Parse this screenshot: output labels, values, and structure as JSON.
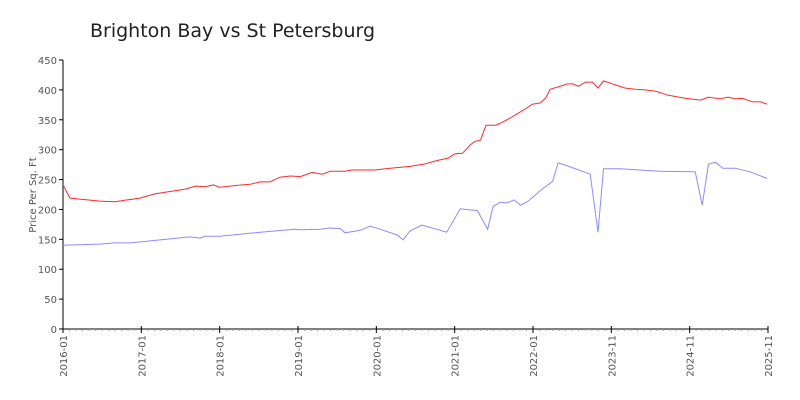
{
  "chart_data": {
    "type": "line",
    "title": "Brighton Bay vs St Petersburg",
    "xlabel": "",
    "ylabel": "Price Per Sq. Ft",
    "ylim": [
      0,
      450
    ],
    "yticks": [
      0,
      50,
      100,
      150,
      200,
      250,
      300,
      350,
      400,
      450
    ],
    "xlim": [
      0,
      9
    ],
    "xticks": [
      "2016-01",
      "2017-01",
      "2018-01",
      "2019-01",
      "2020-01",
      "2021-01",
      "2022-01",
      "2023-11",
      "2024-11",
      "2025-11"
    ],
    "x_units": "tick index",
    "grid": false,
    "legend": "none",
    "series": [
      {
        "name": "Brighton Bay",
        "color": "#ff2a2a",
        "points": [
          [
            0,
            241
          ],
          [
            0.09,
            219
          ],
          [
            0.47,
            214
          ],
          [
            0.66,
            213
          ],
          [
            0.98,
            219
          ],
          [
            1.17,
            226
          ],
          [
            1.56,
            234
          ],
          [
            1.69,
            239
          ],
          [
            1.81,
            238
          ],
          [
            1.92,
            241
          ],
          [
            2.0,
            237
          ],
          [
            2.2,
            240
          ],
          [
            2.39,
            242
          ],
          [
            2.52,
            246
          ],
          [
            2.64,
            246
          ],
          [
            2.77,
            254
          ],
          [
            2.9,
            256
          ],
          [
            3.03,
            255
          ],
          [
            3.18,
            262
          ],
          [
            3.31,
            259
          ],
          [
            3.41,
            264
          ],
          [
            3.6,
            264
          ],
          [
            3.69,
            266
          ],
          [
            3.98,
            266
          ],
          [
            4.18,
            269
          ],
          [
            4.43,
            272
          ],
          [
            4.62,
            276
          ],
          [
            4.75,
            281
          ],
          [
            4.92,
            286
          ],
          [
            5.0,
            293
          ],
          [
            5.1,
            294
          ],
          [
            5.2,
            308
          ],
          [
            5.26,
            314
          ],
          [
            5.33,
            316
          ],
          [
            5.4,
            341
          ],
          [
            5.52,
            341
          ],
          [
            5.58,
            344
          ],
          [
            5.71,
            353
          ],
          [
            5.81,
            361
          ],
          [
            5.9,
            368
          ],
          [
            5.99,
            376
          ],
          [
            6.09,
            378
          ],
          [
            6.16,
            386
          ],
          [
            6.22,
            401
          ],
          [
            6.32,
            405
          ],
          [
            6.44,
            410
          ],
          [
            6.51,
            410
          ],
          [
            6.58,
            406
          ],
          [
            6.67,
            413
          ],
          [
            6.76,
            413
          ],
          [
            6.83,
            403
          ],
          [
            6.9,
            415
          ],
          [
            6.99,
            411
          ],
          [
            7.18,
            403
          ],
          [
            7.31,
            401
          ],
          [
            7.43,
            400
          ],
          [
            7.56,
            398
          ],
          [
            7.73,
            391
          ],
          [
            7.94,
            386
          ],
          [
            8.14,
            383
          ],
          [
            8.24,
            388
          ],
          [
            8.39,
            385
          ],
          [
            8.49,
            388
          ],
          [
            8.58,
            385
          ],
          [
            8.67,
            386
          ],
          [
            8.8,
            380
          ],
          [
            8.9,
            380
          ],
          [
            8.99,
            376
          ]
        ]
      },
      {
        "name": "St Petersburg",
        "color": "#8c8cff",
        "points": [
          [
            0,
            140
          ],
          [
            0.47,
            142
          ],
          [
            0.66,
            144
          ],
          [
            0.86,
            144
          ],
          [
            1.24,
            149
          ],
          [
            1.62,
            154
          ],
          [
            1.75,
            152
          ],
          [
            1.81,
            155
          ],
          [
            2.0,
            155
          ],
          [
            2.52,
            162
          ],
          [
            2.96,
            167
          ],
          [
            3.03,
            166
          ],
          [
            3.28,
            167
          ],
          [
            3.41,
            169
          ],
          [
            3.54,
            168
          ],
          [
            3.6,
            161
          ],
          [
            3.79,
            165
          ],
          [
            3.92,
            172
          ],
          [
            4.05,
            167
          ],
          [
            4.27,
            157
          ],
          [
            4.34,
            149
          ],
          [
            4.43,
            164
          ],
          [
            4.58,
            174
          ],
          [
            4.9,
            162
          ],
          [
            5.07,
            201
          ],
          [
            5.29,
            198
          ],
          [
            5.42,
            167
          ],
          [
            5.49,
            205
          ],
          [
            5.58,
            212
          ],
          [
            5.67,
            211
          ],
          [
            5.76,
            216
          ],
          [
            5.84,
            207
          ],
          [
            5.94,
            214
          ],
          [
            6.09,
            231
          ],
          [
            6.25,
            247
          ],
          [
            6.32,
            278
          ],
          [
            6.48,
            271
          ],
          [
            6.73,
            259
          ],
          [
            6.83,
            162
          ],
          [
            6.9,
            268
          ],
          [
            7.11,
            268
          ],
          [
            7.62,
            264
          ],
          [
            8.07,
            263
          ],
          [
            8.16,
            207
          ],
          [
            8.24,
            276
          ],
          [
            8.33,
            279
          ],
          [
            8.42,
            269
          ],
          [
            8.58,
            269
          ],
          [
            8.77,
            263
          ],
          [
            8.99,
            252
          ]
        ]
      }
    ]
  }
}
